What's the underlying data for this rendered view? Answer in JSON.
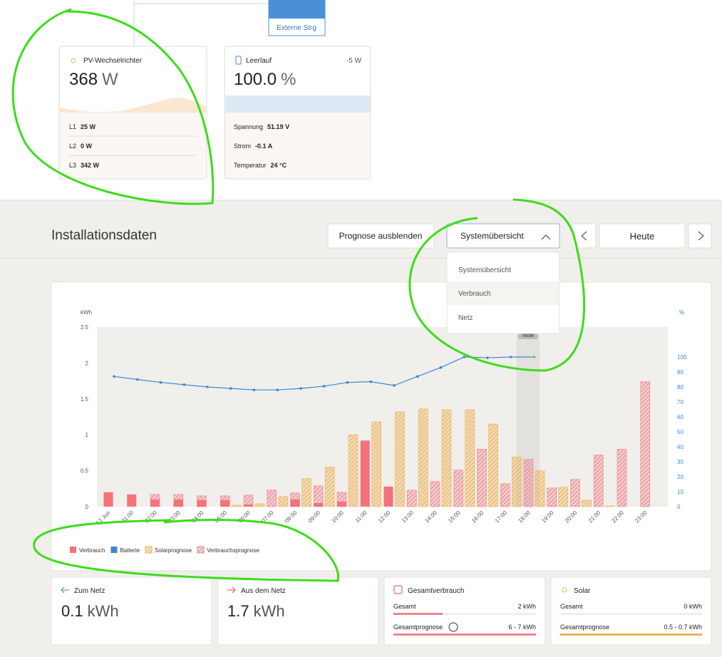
{
  "top": {
    "external": "Externe Strg",
    "pv": {
      "title": "PV-Wechselrichter",
      "value": "368",
      "unit": "W",
      "rows": [
        {
          "label": "L1",
          "value": "25 W"
        },
        {
          "label": "L2",
          "value": "0 W"
        },
        {
          "label": "L3",
          "value": "342 W"
        }
      ]
    },
    "battery": {
      "title": "Leerlauf",
      "power": "-5 W",
      "value": "100.0",
      "unit": "%",
      "rows": [
        {
          "label": "Spannung",
          "value": "51.19 V"
        },
        {
          "label": "Strom",
          "value": "-0.1 A"
        },
        {
          "label": "Temperatur",
          "value": "24 °C"
        }
      ]
    }
  },
  "toolbar": {
    "title": "Installationsdaten",
    "forecast_button": "Prognose ausblenden",
    "dropdown": "Systemübersicht",
    "dropdown_items": [
      "Systemübersicht",
      "Verbrauch",
      "Netz"
    ],
    "today": "Heute"
  },
  "chart_data": {
    "type": "bar",
    "ylabel": "kWh",
    "y2label": "%",
    "now_label": "Now",
    "categories": [
      "12 Jun",
      "01:00",
      "02:00",
      "03:00",
      "04:00",
      "05:00",
      "06:00",
      "07:00",
      "08:00",
      "09:00",
      "10:00",
      "11:00",
      "12:00",
      "13:00",
      "14:00",
      "15:00",
      "16:00",
      "17:00",
      "18:00",
      "19:00",
      "20:00",
      "21:00",
      "22:00",
      "23:00"
    ],
    "series": [
      {
        "name": "Verbrauch",
        "color": "#f4727a",
        "values": [
          0.2,
          0.17,
          0.1,
          0.1,
          0.09,
          0.09,
          0.03,
          0,
          0.1,
          0.05,
          0.07,
          0.92,
          0.28,
          null,
          null,
          null,
          null,
          null,
          null,
          null,
          null,
          null,
          null,
          null
        ]
      },
      {
        "name": "Batterie",
        "color": "#3f87cc",
        "type": "line",
        "axis": "y2",
        "values": [
          87,
          85,
          83,
          81.5,
          80,
          79,
          78,
          78,
          79,
          80.5,
          83,
          83.5,
          81,
          87,
          93,
          100,
          99.5,
          100,
          100,
          null,
          null,
          null,
          null,
          null
        ]
      },
      {
        "name": "Solarprognose",
        "color": "#eeb255",
        "pattern": "hatch",
        "values": [
          0,
          0,
          0,
          0,
          0,
          0.02,
          0.04,
          0.14,
          0.39,
          0.55,
          1.0,
          1.18,
          1.32,
          1.36,
          1.35,
          1.35,
          1.15,
          0.69,
          0.5,
          0.27,
          0.09,
          0.01,
          0,
          0
        ]
      },
      {
        "name": "Verbrauchsprognose",
        "color": "#f0858c",
        "pattern": "hatch",
        "values": [
          null,
          null,
          0.17,
          0.17,
          0.15,
          0.15,
          0.16,
          0.23,
          0.19,
          0.29,
          0.2,
          null,
          null,
          0.23,
          0.35,
          0.51,
          0.8,
          0.32,
          0.66,
          0.26,
          0.38,
          0.72,
          0.8,
          1.74
        ]
      }
    ],
    "ylim": [
      0,
      2.5
    ],
    "yticks": [
      0,
      0.5,
      1,
      1.5,
      2,
      2.5
    ],
    "y2lim": [
      0,
      120
    ],
    "y2ticks": [
      0,
      10,
      20,
      30,
      40,
      50,
      60,
      70,
      80,
      90,
      100
    ],
    "grid": false
  },
  "summary": [
    {
      "title": "Zum Netz",
      "value": "0.1",
      "unit": "kWh"
    },
    {
      "title": "Aus dem Netz",
      "value": "1.7",
      "unit": "kWh"
    },
    {
      "title": "Gesamtverbrauch",
      "rows": [
        {
          "label": "Gesamt",
          "value": "2 kWh"
        },
        {
          "label": "Gesamtprognose",
          "value": "6 - 7 kWh"
        }
      ]
    },
    {
      "title": "Solar",
      "rows": [
        {
          "label": "Gesamt",
          "value": "0 kWh"
        },
        {
          "label": "Gesamtprognose",
          "value": "0.5 - 0.7 kWh"
        }
      ]
    }
  ]
}
